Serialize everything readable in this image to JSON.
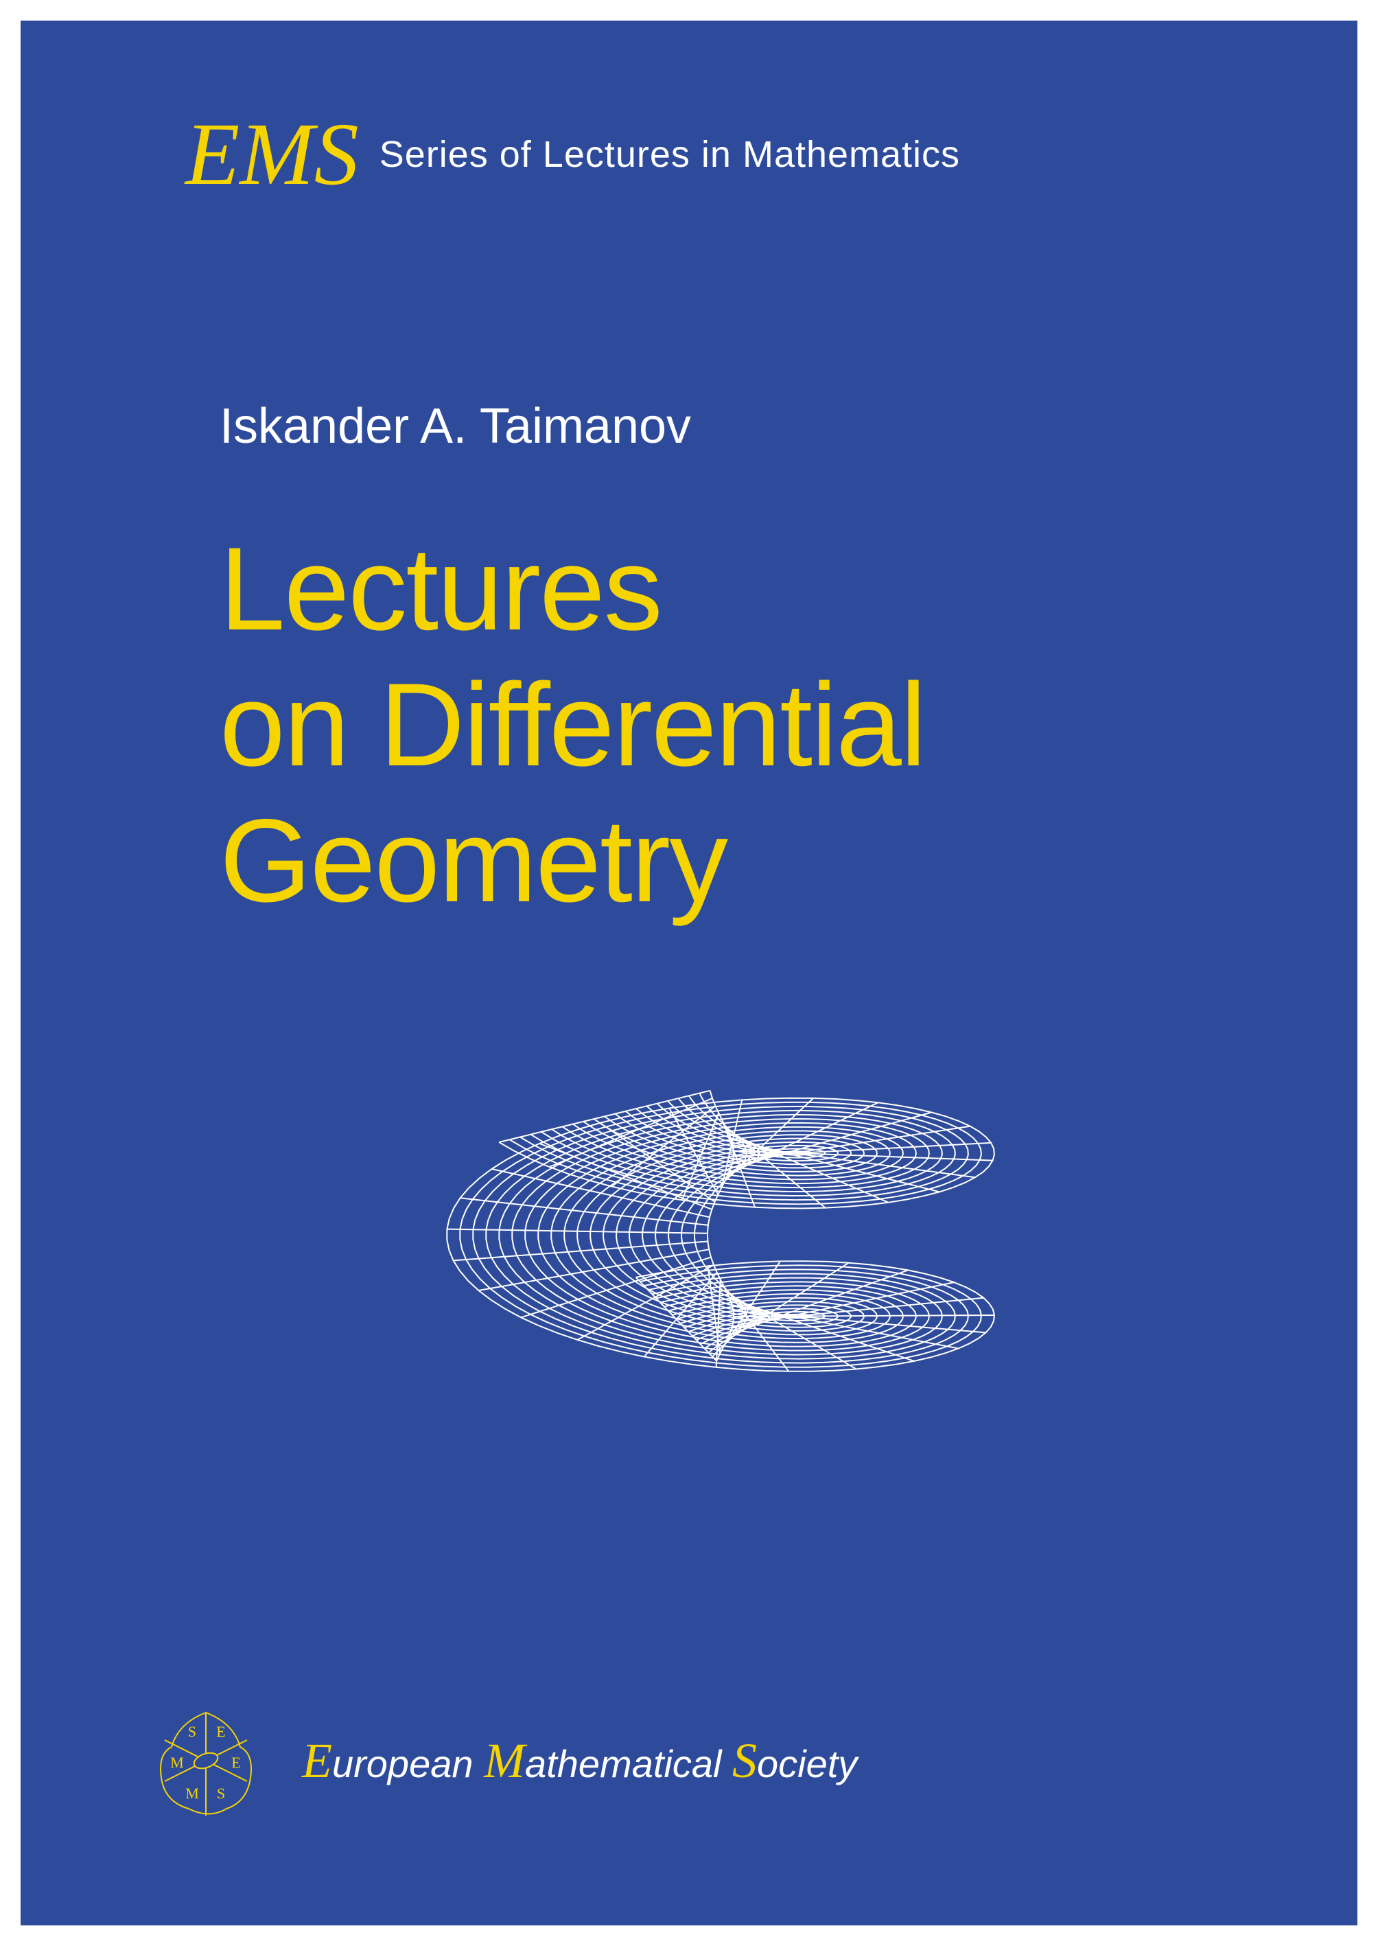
{
  "header": {
    "logo_text": "EMS",
    "series": "Series of Lectures in Mathematics"
  },
  "author": "Iskander A. Taimanov",
  "title": {
    "line1": "Lectures",
    "line2": "on Differential",
    "line3": "Geometry"
  },
  "publisher": {
    "cap_e": "E",
    "word1": "uropean",
    "cap_m": "M",
    "word2": "athematical",
    "cap_s": "S",
    "word3": "ociety"
  },
  "colors": {
    "background": "#2e4b9b",
    "frame": "#ffffff",
    "accent": "#f5d400",
    "text_light": "#ffffff",
    "wireframe": "#ffffff"
  },
  "illustration": {
    "type": "wireframe-surface",
    "description": "helicoid-like twisted surface rendered as wireframe mesh",
    "grid_u_lines": 20,
    "grid_v_lines": 40,
    "stroke_color": "#ffffff",
    "stroke_width": 2
  },
  "footer_logo": {
    "type": "geometric-emblem",
    "letters": [
      "S",
      "E",
      "M",
      "E",
      "M",
      "S"
    ],
    "stroke_color": "#f5d400",
    "fill_color": "#2e4b9b"
  }
}
